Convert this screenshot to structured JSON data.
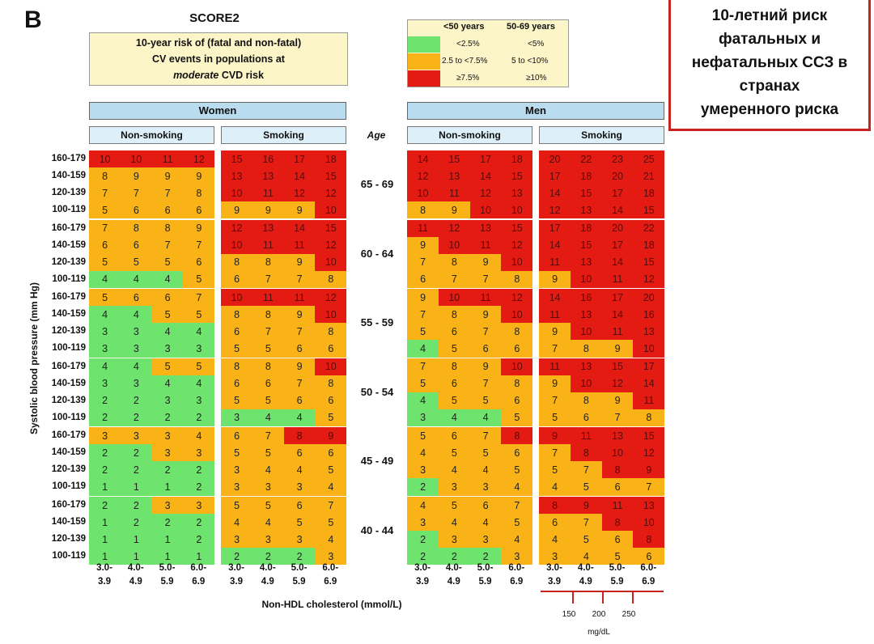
{
  "panel_label": "B",
  "title": "SCORE2",
  "description": {
    "line1": "10-year risk of (fatal and non-fatal)",
    "line2": "CV events in populations at",
    "line3_italic": "moderate",
    "line3_rest": " CVD risk"
  },
  "legend": {
    "col1": "<50 years",
    "col2": "50-69 years",
    "rows": [
      {
        "color": "#6ee36e",
        "a": "<2.5%",
        "b": "<5%"
      },
      {
        "color": "#f9b316",
        "a": "2.5 to <7.5%",
        "b": "5 to <10%"
      },
      {
        "color": "#e41b13",
        "a": "≥7.5%",
        "b": "≥10%"
      }
    ]
  },
  "note_ru": [
    "10-летний риск",
    "фатальных и",
    "нефатальных ССЗ в",
    "странах",
    "умеренного риска"
  ],
  "headers": {
    "women": "Women",
    "men": "Men",
    "nonsmoking": "Non-smoking",
    "smoking": "Smoking",
    "age": "Age"
  },
  "y_axis_label": "Systolic blood pressure (mm Hg)",
  "x_axis_label": "Non-HDL cholesterol (mmol/L)",
  "x_ticks": [
    [
      "3.0-",
      "3.9"
    ],
    [
      "4.0-",
      "4.9"
    ],
    [
      "5.0-",
      "5.9"
    ],
    [
      "6.0-",
      "6.9"
    ]
  ],
  "mg_ticks": [
    "150",
    "200",
    "250"
  ],
  "mg_unit": "mg/dL",
  "colors": {
    "green": "#6ee36e",
    "orange": "#f9b316",
    "red": "#e41b13"
  },
  "chart_data": {
    "type": "heatmap",
    "title": "SCORE2",
    "xlabel": "Non-HDL cholesterol (mmol/L)",
    "ylabel": "Systolic blood pressure (mm Hg)",
    "x_categories": [
      "3.0-3.9",
      "4.0-4.9",
      "5.0-5.9",
      "6.0-6.9"
    ],
    "y_categories": [
      "160-179",
      "140-159",
      "120-139",
      "100-119"
    ],
    "age_groups": [
      "65 - 69",
      "60 - 64",
      "55 - 59",
      "50 - 54",
      "45 - 49",
      "40 - 44"
    ],
    "panels": [
      {
        "sex": "Women",
        "smoking": "Non-smoking",
        "values": [
          [
            [
              10,
              10,
              11,
              12
            ],
            [
              8,
              9,
              9,
              9
            ],
            [
              7,
              7,
              7,
              8
            ],
            [
              5,
              6,
              6,
              6
            ]
          ],
          [
            [
              7,
              8,
              8,
              9
            ],
            [
              6,
              6,
              7,
              7
            ],
            [
              5,
              5,
              5,
              6
            ],
            [
              4,
              4,
              4,
              5
            ]
          ],
          [
            [
              5,
              6,
              6,
              7
            ],
            [
              4,
              4,
              5,
              5
            ],
            [
              3,
              3,
              4,
              4
            ],
            [
              3,
              3,
              3,
              3
            ]
          ],
          [
            [
              4,
              4,
              5,
              5
            ],
            [
              3,
              3,
              4,
              4
            ],
            [
              2,
              2,
              3,
              3
            ],
            [
              2,
              2,
              2,
              2
            ]
          ],
          [
            [
              3,
              3,
              3,
              4
            ],
            [
              2,
              2,
              3,
              3
            ],
            [
              2,
              2,
              2,
              2
            ],
            [
              1,
              1,
              1,
              2
            ]
          ],
          [
            [
              2,
              2,
              3,
              3
            ],
            [
              1,
              2,
              2,
              2
            ],
            [
              1,
              1,
              1,
              2
            ],
            [
              1,
              1,
              1,
              1
            ]
          ]
        ],
        "colors": [
          [
            "RRRR",
            "OOOO",
            "OOOO",
            "OOOO"
          ],
          [
            "OOOO",
            "OOOO",
            "OOOO",
            "GGGO"
          ],
          [
            "OOOO",
            "GGOO",
            "GGGG",
            "GGGG"
          ],
          [
            "GGOO",
            "GGGG",
            "GGGG",
            "GGGG"
          ],
          [
            "OOOO",
            "GGOO",
            "GGGG",
            "GGGG"
          ],
          [
            "GGOO",
            "GGGG",
            "GGGG",
            "GGGG"
          ]
        ]
      },
      {
        "sex": "Women",
        "smoking": "Smoking",
        "values": [
          [
            [
              15,
              16,
              17,
              18
            ],
            [
              13,
              13,
              14,
              15
            ],
            [
              10,
              11,
              12,
              12
            ],
            [
              9,
              9,
              9,
              10
            ]
          ],
          [
            [
              12,
              13,
              14,
              15
            ],
            [
              10,
              11,
              11,
              12
            ],
            [
              8,
              8,
              9,
              10
            ],
            [
              6,
              7,
              7,
              8
            ]
          ],
          [
            [
              10,
              11,
              11,
              12
            ],
            [
              8,
              8,
              9,
              10
            ],
            [
              6,
              7,
              7,
              8
            ],
            [
              5,
              5,
              6,
              6
            ]
          ],
          [
            [
              8,
              8,
              9,
              10
            ],
            [
              6,
              6,
              7,
              8
            ],
            [
              5,
              5,
              6,
              6
            ],
            [
              3,
              4,
              4,
              5
            ]
          ],
          [
            [
              6,
              7,
              8,
              9
            ],
            [
              5,
              5,
              6,
              6
            ],
            [
              3,
              4,
              4,
              5
            ],
            [
              3,
              3,
              3,
              4
            ]
          ],
          [
            [
              5,
              5,
              6,
              7
            ],
            [
              4,
              4,
              5,
              5
            ],
            [
              3,
              3,
              3,
              4
            ],
            [
              2,
              2,
              2,
              3
            ]
          ]
        ],
        "colors": [
          [
            "RRRR",
            "RRRR",
            "RRRR",
            "OOOR"
          ],
          [
            "RRRR",
            "RRRR",
            "OOOR",
            "OOOO"
          ],
          [
            "RRRR",
            "OOOR",
            "OOOO",
            "OOOO"
          ],
          [
            "OOOR",
            "OOOO",
            "OOOO",
            "GGGO"
          ],
          [
            "OORR",
            "OOOO",
            "OOOO",
            "OOOO"
          ],
          [
            "OOOO",
            "OOOO",
            "OOOO",
            "GGGO"
          ]
        ]
      },
      {
        "sex": "Men",
        "smoking": "Non-smoking",
        "values": [
          [
            [
              14,
              15,
              17,
              18
            ],
            [
              12,
              13,
              14,
              15
            ],
            [
              10,
              11,
              12,
              13
            ],
            [
              8,
              9,
              10,
              10
            ]
          ],
          [
            [
              11,
              12,
              13,
              15
            ],
            [
              9,
              10,
              11,
              12
            ],
            [
              7,
              8,
              9,
              10
            ],
            [
              6,
              7,
              7,
              8
            ]
          ],
          [
            [
              9,
              10,
              11,
              12
            ],
            [
              7,
              8,
              9,
              10
            ],
            [
              5,
              6,
              7,
              8
            ],
            [
              4,
              5,
              6,
              6
            ]
          ],
          [
            [
              7,
              8,
              9,
              10
            ],
            [
              5,
              6,
              7,
              8
            ],
            [
              4,
              5,
              5,
              6
            ],
            [
              3,
              4,
              4,
              5
            ]
          ],
          [
            [
              5,
              6,
              7,
              8
            ],
            [
              4,
              5,
              5,
              6
            ],
            [
              3,
              4,
              4,
              5
            ],
            [
              2,
              3,
              3,
              4
            ]
          ],
          [
            [
              4,
              5,
              6,
              7
            ],
            [
              3,
              4,
              4,
              5
            ],
            [
              2,
              3,
              3,
              4
            ],
            [
              2,
              2,
              2,
              3
            ]
          ]
        ],
        "colors": [
          [
            "RRRR",
            "RRRR",
            "RRRR",
            "OORR"
          ],
          [
            "RRRR",
            "ORRR",
            "OOOR",
            "OOOO"
          ],
          [
            "ORRR",
            "OOOR",
            "OOOO",
            "GOOO"
          ],
          [
            "OOOR",
            "OOOO",
            "GOOO",
            "GGGO"
          ],
          [
            "OOOR",
            "OOOO",
            "OOOO",
            "GOOO"
          ],
          [
            "OOOO",
            "OOOO",
            "GOOO",
            "GGGO"
          ]
        ]
      },
      {
        "sex": "Men",
        "smoking": "Smoking",
        "values": [
          [
            [
              20,
              22,
              23,
              25
            ],
            [
              17,
              18,
              20,
              21
            ],
            [
              14,
              15,
              17,
              18
            ],
            [
              12,
              13,
              14,
              15
            ]
          ],
          [
            [
              17,
              18,
              20,
              22
            ],
            [
              14,
              15,
              17,
              18
            ],
            [
              11,
              13,
              14,
              15
            ],
            [
              9,
              10,
              11,
              12
            ]
          ],
          [
            [
              14,
              16,
              17,
              20
            ],
            [
              11,
              13,
              14,
              16
            ],
            [
              9,
              10,
              11,
              13
            ],
            [
              7,
              8,
              9,
              10
            ]
          ],
          [
            [
              11,
              13,
              15,
              17
            ],
            [
              9,
              10,
              12,
              14
            ],
            [
              7,
              8,
              9,
              11
            ],
            [
              5,
              6,
              7,
              8
            ]
          ],
          [
            [
              9,
              11,
              13,
              15
            ],
            [
              7,
              8,
              10,
              12
            ],
            [
              5,
              7,
              8,
              9
            ],
            [
              4,
              5,
              6,
              7
            ]
          ],
          [
            [
              8,
              9,
              11,
              13
            ],
            [
              6,
              7,
              8,
              10
            ],
            [
              4,
              5,
              6,
              8
            ],
            [
              3,
              4,
              5,
              6
            ]
          ]
        ],
        "colors": [
          [
            "RRRR",
            "RRRR",
            "RRRR",
            "RRRR"
          ],
          [
            "RRRR",
            "RRRR",
            "RRRR",
            "ORRR"
          ],
          [
            "RRRR",
            "RRRR",
            "ORRR",
            "OOOR"
          ],
          [
            "RRRR",
            "ORRR",
            "OOOR",
            "OOOO"
          ],
          [
            "RRRR",
            "ORRR",
            "OORR",
            "OOOO"
          ],
          [
            "RRRR",
            "OORR",
            "OOOR",
            "OOOO"
          ]
        ]
      }
    ]
  }
}
